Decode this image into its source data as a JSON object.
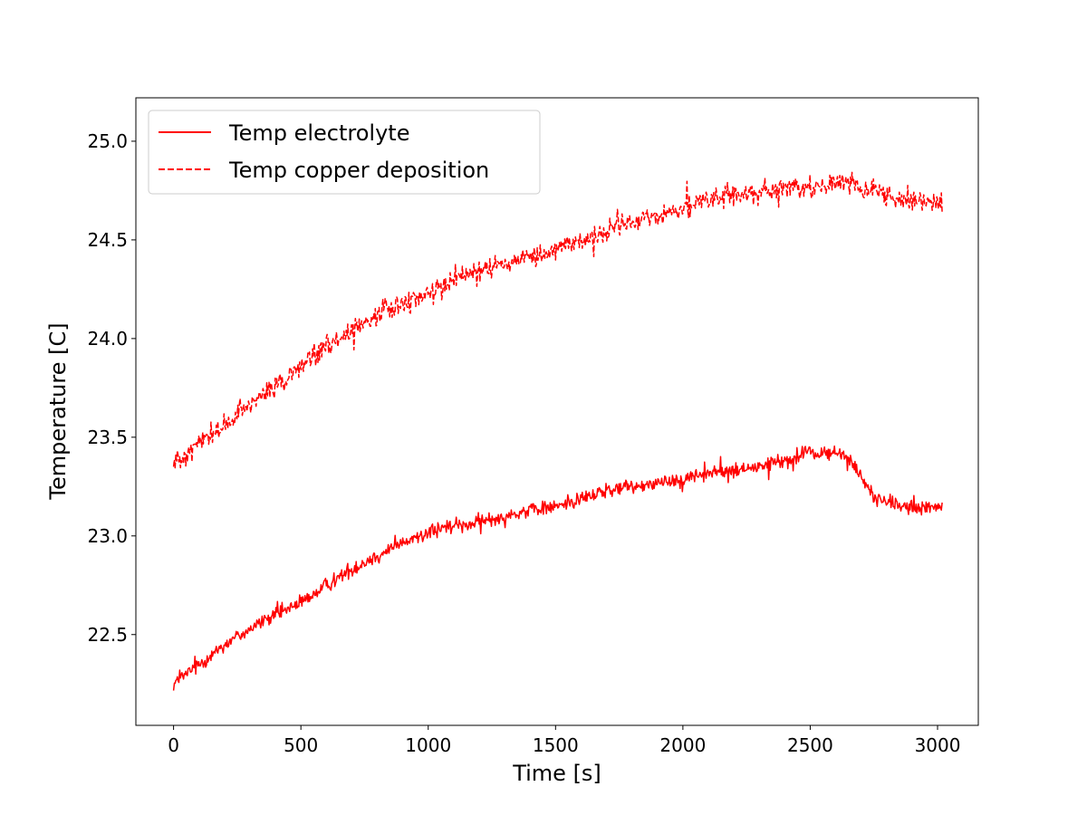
{
  "chart_data": {
    "type": "line",
    "title": "",
    "xlabel": "Time [s]",
    "ylabel": "Temperature [C]",
    "xlim": [
      -148,
      3160
    ],
    "ylim": [
      22.04,
      25.22
    ],
    "xticks": [
      0,
      500,
      1000,
      1500,
      2000,
      2500,
      3000
    ],
    "xtick_labels": [
      "0",
      "500",
      "1000",
      "1500",
      "2000",
      "2500",
      "3000"
    ],
    "yticks": [
      22.5,
      23.0,
      23.5,
      24.0,
      24.5,
      25.0
    ],
    "ytick_labels": [
      "22.5",
      "23.0",
      "23.5",
      "24.0",
      "24.5",
      "25.0"
    ],
    "grid": false,
    "legend_position": "top-left",
    "series": [
      {
        "name": "Temp electrolyte",
        "color": "#ff0000",
        "linestyle": "solid",
        "noise_amplitude": 0.055,
        "x": [
          0,
          100,
          200,
          300,
          400,
          500,
          600,
          700,
          800,
          900,
          1000,
          1100,
          1200,
          1300,
          1400,
          1500,
          1600,
          1700,
          1800,
          1900,
          2000,
          2100,
          2200,
          2300,
          2400,
          2500,
          2600,
          2650,
          2700,
          2750,
          2800,
          2900,
          3000,
          3020
        ],
        "y": [
          22.25,
          22.35,
          22.45,
          22.53,
          22.6,
          22.66,
          22.75,
          22.83,
          22.9,
          22.96,
          23.02,
          23.05,
          23.07,
          23.1,
          23.13,
          23.15,
          23.19,
          23.23,
          23.25,
          23.27,
          23.29,
          23.32,
          23.33,
          23.35,
          23.38,
          23.42,
          23.42,
          23.4,
          23.3,
          23.2,
          23.17,
          23.14,
          23.14,
          23.15
        ]
      },
      {
        "name": "Temp copper deposition",
        "color": "#ff0000",
        "linestyle": "dashed",
        "noise_amplitude": 0.08,
        "x": [
          0,
          100,
          200,
          300,
          400,
          500,
          600,
          700,
          800,
          900,
          1000,
          1100,
          1200,
          1300,
          1400,
          1500,
          1600,
          1700,
          1800,
          1900,
          2000,
          2100,
          2200,
          2300,
          2400,
          2500,
          2600,
          2650,
          2700,
          2800,
          2900,
          3000,
          3020
        ],
        "y": [
          23.37,
          23.47,
          23.56,
          23.66,
          23.76,
          23.86,
          23.96,
          24.04,
          24.12,
          24.18,
          24.23,
          24.3,
          24.34,
          24.38,
          24.42,
          24.46,
          24.5,
          24.54,
          24.59,
          24.62,
          24.66,
          24.7,
          24.73,
          24.74,
          24.75,
          24.76,
          24.78,
          24.8,
          24.76,
          24.73,
          24.7,
          24.68,
          24.68
        ]
      }
    ]
  }
}
